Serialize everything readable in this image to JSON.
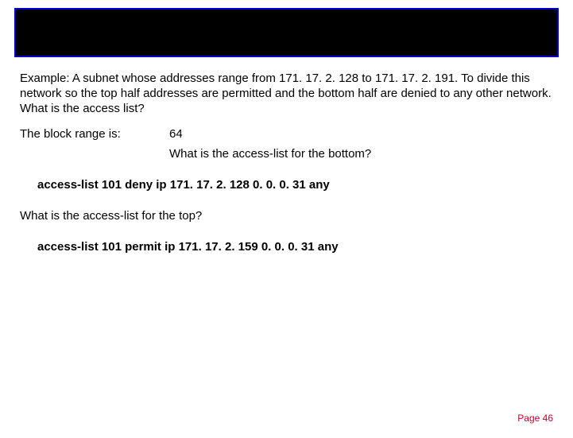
{
  "title_bar": {
    "background_color": "#000000",
    "border_color": "#0000cc"
  },
  "example": {
    "text": "Example: A subnet whose addresses range from 171. 17. 2. 128 to 171. 17. 2. 191. To divide this network so the top half addresses are permitted and the bottom half are denied to any other network. What is the access list?"
  },
  "block": {
    "label": "The block range is:",
    "value": "64"
  },
  "question1": "What is the access-list for the bottom?",
  "acl1": "access-list 101 deny ip 171. 17. 2. 128   0. 0. 0. 31  any",
  "question2": "What is the access-list for the top?",
  "acl2": "access-list  101 permit ip 171. 17. 2. 159  0. 0. 0. 31  any",
  "page": "Page 46",
  "colors": {
    "text": "#000000",
    "page_number": "#cc0033",
    "background": "#ffffff"
  },
  "typography": {
    "body_fontsize": 15,
    "page_fontsize": 12,
    "font_family": "Arial"
  }
}
